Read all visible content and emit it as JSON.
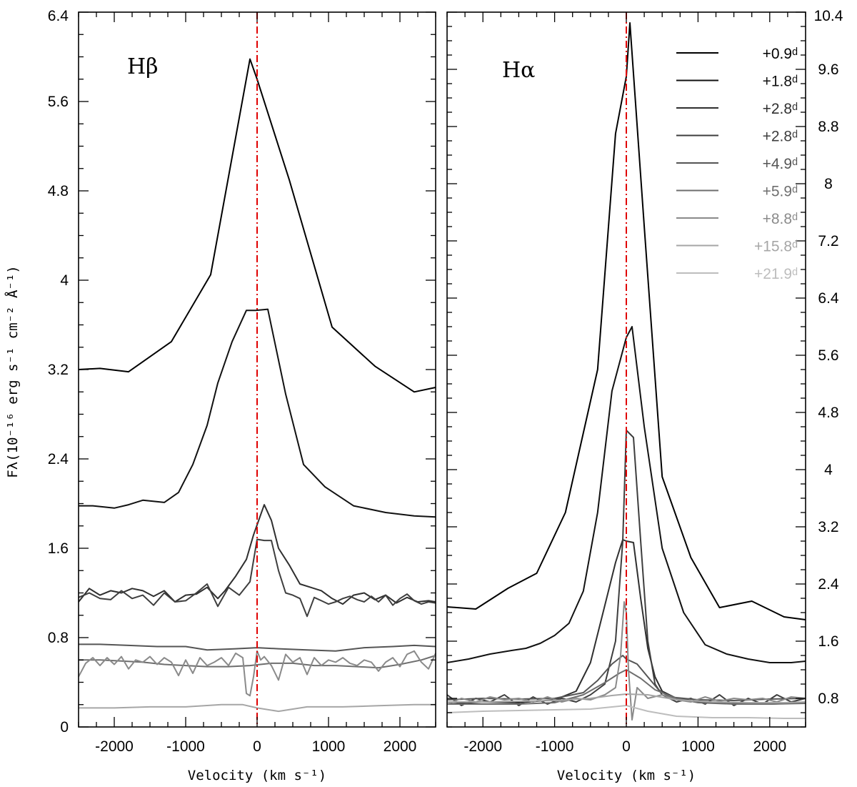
{
  "figure": {
    "ylabel": "Fλ(10⁻¹⁶ erg s⁻¹ cm⁻² Å⁻¹)",
    "legend_entries": [
      "+0.9ᵈ",
      "+1.8ᵈ",
      "+2.8ᵈ",
      "+2.8ᵈ",
      "+4.9ᵈ",
      "+5.9ᵈ",
      "+8.8ᵈ",
      "+15.8ᵈ",
      "+21.9ᵈ"
    ],
    "legend_colors": [
      "#000000",
      "#111111",
      "#2f2f2f",
      "#3e3e3e",
      "#555555",
      "#6e6e6e",
      "#8a8a8a",
      "#a6a6a6",
      "#bdbdbd"
    ],
    "reference_line_color": "#e00000"
  },
  "chart_data": [
    {
      "type": "line",
      "title": "Hβ",
      "xlabel": "Velocity (km s⁻¹)",
      "ylabel": "Fλ(10⁻¹⁶ erg s⁻¹ cm⁻² Å⁻¹)",
      "xlim": [
        -2500,
        2500
      ],
      "ylim": [
        0,
        6.4
      ],
      "x_ticks": [
        -2000,
        -1000,
        0,
        1000,
        2000
      ],
      "x_tick_labels": [
        "-2000",
        "-1000",
        "0",
        "1000",
        "2000"
      ],
      "y_ticks": [
        0,
        0.8,
        1.6,
        2.4,
        3.2,
        4,
        4.8,
        5.6,
        6.4
      ],
      "y_tick_labels": [
        "0",
        "0.8",
        "1.6",
        "2.4",
        "3.2",
        "4",
        "4.8",
        "5.6",
        "6.4"
      ],
      "reference_line_x": 0,
      "series": [
        {
          "name": "+0.9ᵈ",
          "x": [
            -2500,
            -2200,
            -1800,
            -1200,
            -650,
            -100,
            0,
            450,
            1050,
            1650,
            2200,
            2500
          ],
          "y": [
            3.2,
            3.21,
            3.18,
            3.45,
            4.05,
            5.98,
            5.8,
            4.9,
            3.58,
            3.23,
            3.0,
            3.04
          ]
        },
        {
          "name": "+1.8ᵈ",
          "x": [
            -2500,
            -2300,
            -2000,
            -1800,
            -1600,
            -1300,
            -1100,
            -900,
            -700,
            -550,
            -350,
            -150,
            -20,
            150,
            400,
            650,
            950,
            1350,
            1800,
            2200,
            2500
          ],
          "y": [
            1.98,
            1.98,
            1.96,
            1.99,
            2.03,
            2.01,
            2.1,
            2.35,
            2.7,
            3.08,
            3.45,
            3.73,
            3.73,
            3.74,
            2.98,
            2.35,
            2.15,
            1.98,
            1.92,
            1.89,
            1.88
          ]
        },
        {
          "name": "+2.8ᵈ",
          "x": [
            -2500,
            -2350,
            -2200,
            -2050,
            -1900,
            -1750,
            -1600,
            -1450,
            -1300,
            -1150,
            -1000,
            -850,
            -700,
            -550,
            -450,
            -300,
            -150,
            -50,
            100,
            200,
            300,
            450,
            600,
            750,
            900,
            1050,
            1200,
            1350,
            1500,
            1650,
            1800,
            1950,
            2100,
            2250,
            2400,
            2500
          ],
          "y": [
            1.12,
            1.24,
            1.18,
            1.22,
            1.2,
            1.24,
            1.22,
            1.17,
            1.22,
            1.12,
            1.18,
            1.19,
            1.25,
            1.15,
            1.22,
            1.35,
            1.5,
            1.72,
            1.99,
            1.85,
            1.6,
            1.45,
            1.28,
            1.25,
            1.22,
            1.15,
            1.1,
            1.18,
            1.2,
            1.14,
            1.18,
            1.11,
            1.16,
            1.12,
            1.13,
            1.12
          ]
        },
        {
          "name": "+2.8ᵈ",
          "x": [
            -2500,
            -2350,
            -2200,
            -2050,
            -1900,
            -1750,
            -1600,
            -1450,
            -1300,
            -1150,
            -1000,
            -850,
            -700,
            -550,
            -400,
            -250,
            -100,
            0,
            100,
            200,
            300,
            400,
            500,
            600,
            700,
            800,
            900,
            1000,
            1100,
            1200,
            1300,
            1400,
            1500,
            1600,
            1700,
            1800,
            1900,
            2000,
            2100,
            2200,
            2300,
            2400,
            2500
          ],
          "y": [
            1.16,
            1.2,
            1.15,
            1.14,
            1.22,
            1.15,
            1.18,
            1.09,
            1.2,
            1.12,
            1.13,
            1.2,
            1.28,
            1.08,
            1.25,
            1.18,
            1.3,
            1.68,
            1.67,
            1.67,
            1.4,
            1.2,
            1.18,
            1.15,
            0.99,
            1.16,
            1.13,
            1.1,
            1.12,
            1.15,
            1.17,
            1.14,
            1.12,
            1.17,
            1.12,
            1.18,
            1.09,
            1.15,
            1.19,
            1.13,
            1.1,
            1.12,
            1.11
          ]
        },
        {
          "name": "+4.9ᵈ",
          "x": [
            -2500,
            -2200,
            -1800,
            -1400,
            -1000,
            -700,
            -300,
            0,
            300,
            700,
            1100,
            1500,
            1900,
            2200,
            2500
          ],
          "y": [
            0.74,
            0.74,
            0.73,
            0.72,
            0.72,
            0.69,
            0.7,
            0.71,
            0.7,
            0.69,
            0.68,
            0.71,
            0.72,
            0.73,
            0.72
          ]
        },
        {
          "name": "+5.9ᵈ",
          "x": [
            -2500,
            -2200,
            -1900,
            -1600,
            -1300,
            -1000,
            -700,
            -400,
            -100,
            200,
            500,
            800,
            1100,
            1400,
            1700,
            2000,
            2300,
            2500
          ],
          "y": [
            0.6,
            0.6,
            0.59,
            0.58,
            0.56,
            0.55,
            0.54,
            0.54,
            0.55,
            0.57,
            0.57,
            0.55,
            0.55,
            0.54,
            0.53,
            0.56,
            0.6,
            0.64
          ]
        },
        {
          "name": "+8.8ᵈ",
          "x": [
            -2500,
            -2400,
            -2300,
            -2200,
            -2100,
            -2000,
            -1900,
            -1800,
            -1700,
            -1600,
            -1500,
            -1400,
            -1300,
            -1200,
            -1100,
            -1000,
            -900,
            -800,
            -700,
            -600,
            -500,
            -400,
            -300,
            -200,
            -150,
            -100,
            -50,
            0,
            50,
            100,
            200,
            300,
            400,
            500,
            600,
            700,
            800,
            900,
            1000,
            1100,
            1200,
            1300,
            1400,
            1500,
            1600,
            1700,
            1800,
            1900,
            2000,
            2100,
            2200,
            2300,
            2400,
            2500
          ],
          "y": [
            0.45,
            0.57,
            0.62,
            0.55,
            0.62,
            0.56,
            0.63,
            0.52,
            0.6,
            0.58,
            0.63,
            0.56,
            0.62,
            0.58,
            0.46,
            0.6,
            0.48,
            0.62,
            0.55,
            0.58,
            0.62,
            0.55,
            0.66,
            0.62,
            0.3,
            0.28,
            0.45,
            0.68,
            0.6,
            0.63,
            0.55,
            0.42,
            0.65,
            0.58,
            0.62,
            0.47,
            0.62,
            0.55,
            0.6,
            0.58,
            0.62,
            0.57,
            0.55,
            0.6,
            0.58,
            0.5,
            0.58,
            0.62,
            0.54,
            0.65,
            0.68,
            0.58,
            0.52,
            0.66
          ]
        },
        {
          "name": "+15.8ᵈ",
          "x": [
            -2500,
            -2000,
            -1500,
            -1000,
            -500,
            -200,
            0,
            300,
            700,
            1200,
            1700,
            2200,
            2500
          ],
          "y": [
            0.17,
            0.17,
            0.18,
            0.18,
            0.2,
            0.2,
            0.17,
            0.14,
            0.18,
            0.18,
            0.19,
            0.2,
            0.2
          ]
        }
      ]
    },
    {
      "type": "line",
      "title": "Hα",
      "xlabel": "Velocity (km s⁻¹)",
      "ylabel": "",
      "xlim": [
        -2500,
        2500
      ],
      "ylim": [
        0.4,
        10.4
      ],
      "x_ticks": [
        -2000,
        -1000,
        0,
        1000,
        2000
      ],
      "x_tick_labels": [
        "-2000",
        "-1000",
        "0",
        "1000",
        "2000"
      ],
      "y_ticks": [
        0.8,
        1.6,
        2.4,
        3.2,
        4,
        4.8,
        5.6,
        6.4,
        7.2,
        8,
        8.8,
        9.6,
        10.4
      ],
      "y_tick_labels": [
        "0.8",
        "1.6",
        "2.4",
        "3.2",
        "4",
        "4.8",
        "5.6",
        "6.4",
        "7.2",
        "8",
        "8.8",
        "9.6",
        "10.4"
      ],
      "reference_line_x": 0,
      "series": [
        {
          "name": "+0.9ᵈ",
          "x": [
            -2500,
            -2100,
            -1650,
            -1250,
            -850,
            -400,
            -150,
            0,
            50,
            250,
            500,
            900,
            1300,
            1750,
            2200,
            2500
          ],
          "y": [
            2.08,
            2.05,
            2.34,
            2.55,
            3.4,
            5.4,
            8.7,
            9.5,
            10.25,
            7.4,
            3.9,
            2.77,
            2.07,
            2.16,
            1.94,
            1.9
          ]
        },
        {
          "name": "+1.8ᵈ",
          "x": [
            -2500,
            -2200,
            -1900,
            -1600,
            -1400,
            -1200,
            -1000,
            -800,
            -600,
            -400,
            -200,
            0,
            80,
            250,
            500,
            800,
            1100,
            1400,
            1700,
            2000,
            2300,
            2500
          ],
          "y": [
            1.3,
            1.35,
            1.42,
            1.47,
            1.5,
            1.57,
            1.68,
            1.85,
            2.3,
            3.4,
            5.1,
            5.85,
            6.0,
            4.6,
            2.9,
            2.0,
            1.55,
            1.42,
            1.35,
            1.3,
            1.3,
            1.32
          ]
        },
        {
          "name": "+2.8ᵈ",
          "x": [
            -2500,
            -2000,
            -1500,
            -1000,
            -700,
            -500,
            -300,
            -150,
            -50,
            0,
            100,
            200,
            300,
            400,
            500,
            700,
            1000,
            1500,
            2000,
            2500
          ],
          "y": [
            0.72,
            0.75,
            0.74,
            0.78,
            0.9,
            1.3,
            2.1,
            2.7,
            3.02,
            3.0,
            2.98,
            2.2,
            1.5,
            1.1,
            0.9,
            0.8,
            0.75,
            0.73,
            0.72,
            0.74
          ]
        },
        {
          "name": "+2.8ᵈ",
          "x": [
            -2500,
            -2300,
            -2100,
            -1900,
            -1700,
            -1500,
            -1300,
            -1100,
            -900,
            -700,
            -500,
            -300,
            -150,
            -50,
            0,
            100,
            200,
            300,
            400,
            500,
            700,
            900,
            1100,
            1300,
            1500,
            1700,
            1900,
            2100,
            2300,
            2500
          ],
          "y": [
            0.85,
            0.7,
            0.8,
            0.75,
            0.85,
            0.7,
            0.82,
            0.72,
            0.8,
            0.75,
            0.85,
            1.0,
            1.6,
            3.0,
            4.55,
            4.45,
            3.0,
            1.6,
            1.0,
            0.85,
            0.75,
            0.8,
            0.72,
            0.85,
            0.7,
            0.8,
            0.72,
            0.85,
            0.75,
            0.8
          ]
        },
        {
          "name": "+4.9ᵈ",
          "x": [
            -2500,
            -2000,
            -1500,
            -1000,
            -600,
            -400,
            -200,
            -50,
            0,
            150,
            300,
            450,
            600,
            1000,
            1500,
            2000,
            2500
          ],
          "y": [
            0.78,
            0.8,
            0.79,
            0.8,
            0.88,
            1.05,
            1.28,
            1.4,
            1.35,
            1.28,
            1.1,
            0.92,
            0.82,
            0.78,
            0.77,
            0.79,
            0.8
          ]
        },
        {
          "name": "+5.9ᵈ",
          "x": [
            -2500,
            -2000,
            -1500,
            -1000,
            -600,
            -300,
            -100,
            0,
            200,
            400,
            700,
            1000,
            1500,
            2000,
            2500
          ],
          "y": [
            0.72,
            0.72,
            0.72,
            0.74,
            0.85,
            1.02,
            1.15,
            1.2,
            1.08,
            0.92,
            0.8,
            0.74,
            0.72,
            0.72,
            0.73
          ]
        },
        {
          "name": "+8.8ᵈ",
          "x": [
            -2500,
            -2300,
            -2100,
            -1900,
            -1700,
            -1500,
            -1300,
            -1100,
            -900,
            -700,
            -500,
            -300,
            -150,
            -80,
            -30,
            0,
            30,
            80,
            150,
            300,
            500,
            700,
            900,
            1100,
            1300,
            1500,
            1700,
            1900,
            2100,
            2300,
            2500
          ],
          "y": [
            0.72,
            0.8,
            0.75,
            0.82,
            0.78,
            0.8,
            0.75,
            0.82,
            0.75,
            0.8,
            0.78,
            0.85,
            0.95,
            1.4,
            2.15,
            2.0,
            1.2,
            0.5,
            0.95,
            0.8,
            0.85,
            0.78,
            0.75,
            0.82,
            0.76,
            0.8,
            0.78,
            0.8,
            0.75,
            0.82,
            0.8
          ]
        },
        {
          "name": "+15.8ᵈ",
          "x": [
            -2500,
            -2000,
            -1500,
            -1000,
            -500,
            -200,
            0,
            300,
            700,
            1200,
            1700,
            2200,
            2500
          ],
          "y": [
            0.75,
            0.75,
            0.76,
            0.77,
            0.8,
            0.84,
            0.86,
            0.85,
            0.78,
            0.75,
            0.74,
            0.74,
            0.75
          ]
        },
        {
          "name": "+21.9ᵈ",
          "x": [
            -2500,
            -2000,
            -1500,
            -1000,
            -500,
            -200,
            0,
            300,
            700,
            1200,
            1700,
            2200,
            2500
          ],
          "y": [
            0.6,
            0.62,
            0.63,
            0.64,
            0.65,
            0.68,
            0.7,
            0.62,
            0.55,
            0.53,
            0.53,
            0.52,
            0.52
          ]
        }
      ]
    }
  ]
}
